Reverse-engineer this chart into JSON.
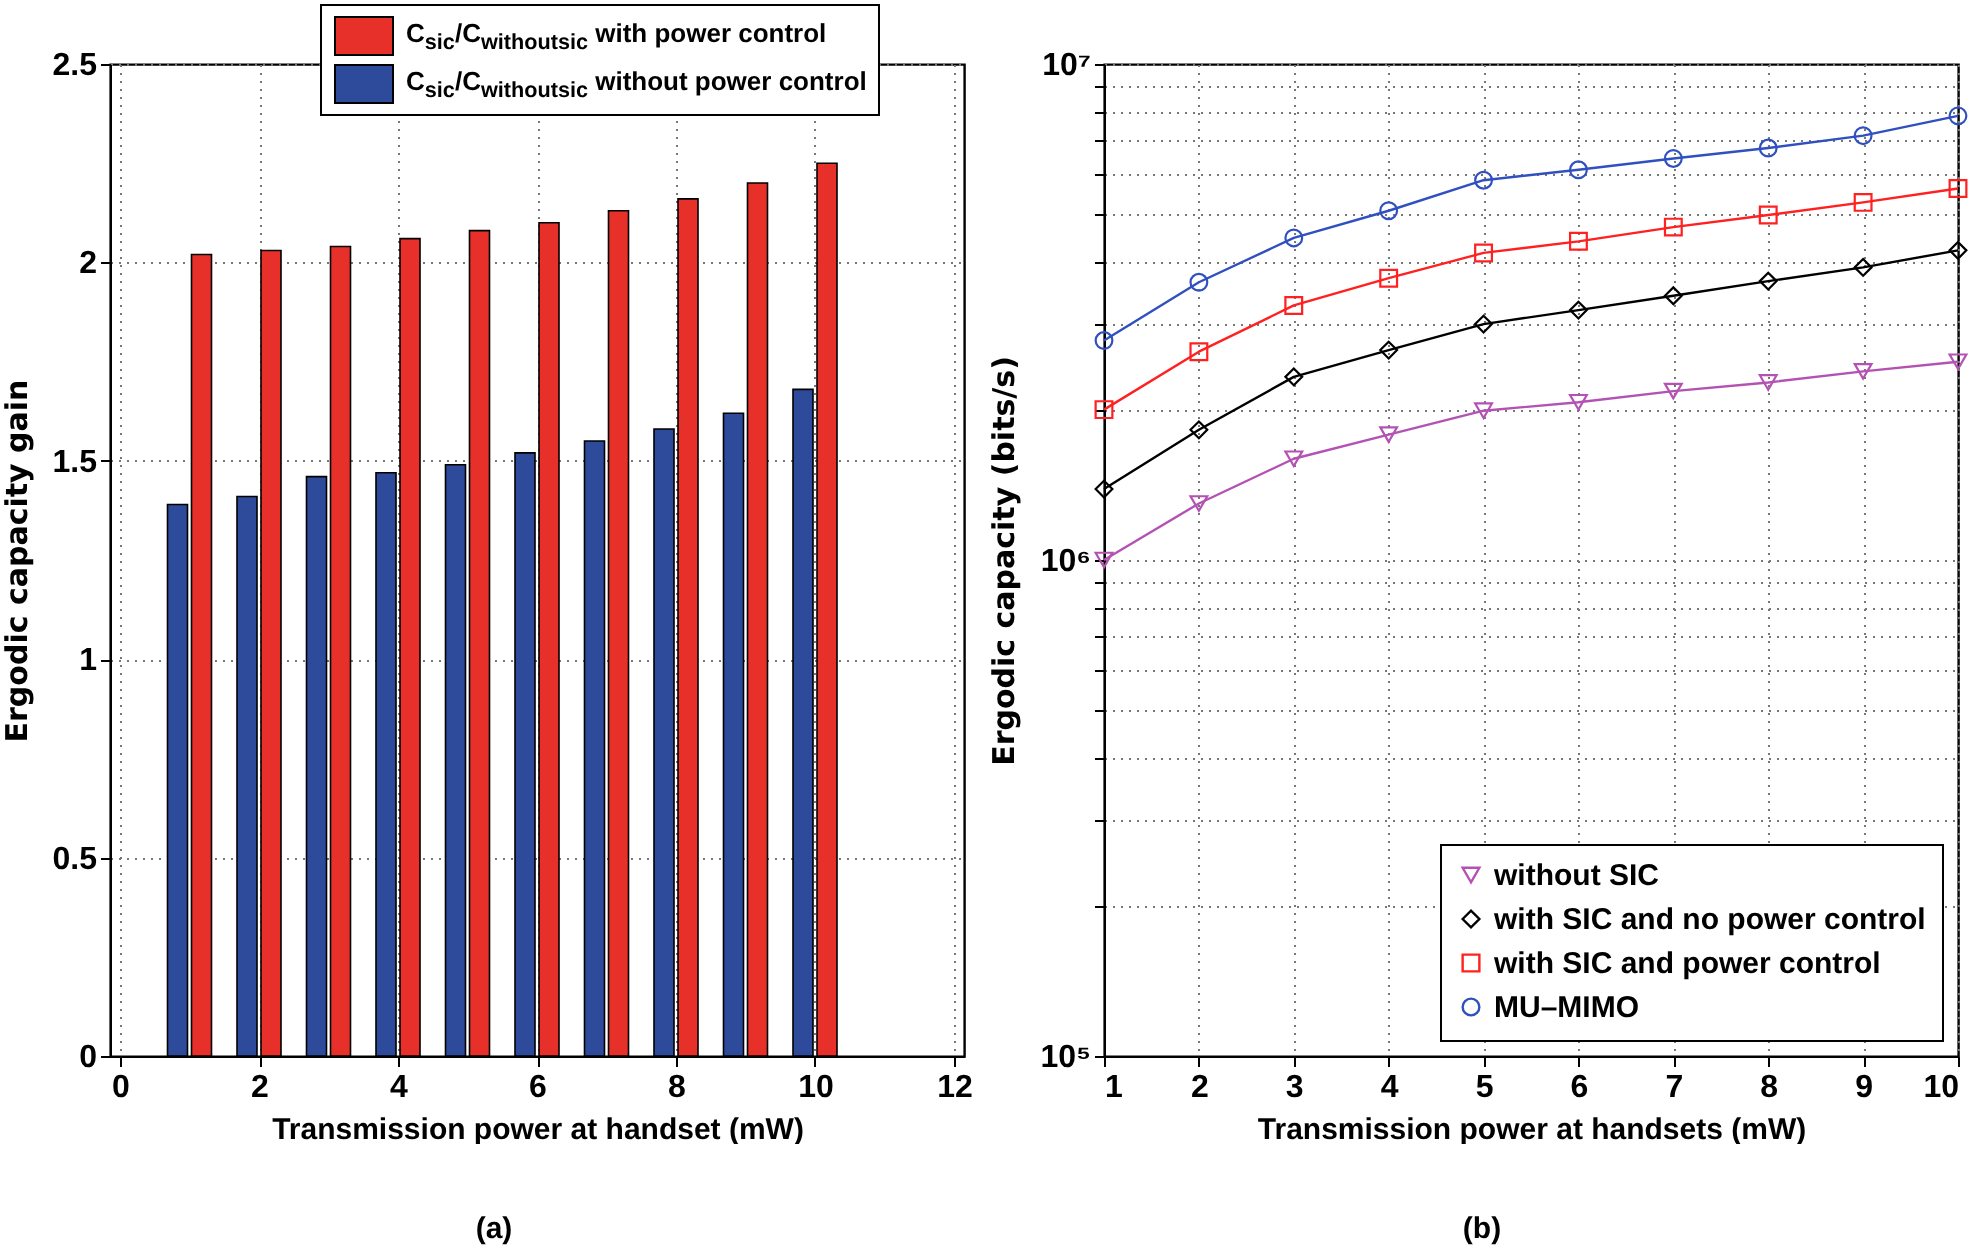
{
  "chart_data": [
    {
      "type": "bar",
      "xlabel": "Transmission power at handset (mW)",
      "ylabel": "Ergodic capacity gain",
      "x": [
        1,
        2,
        3,
        4,
        5,
        6,
        7,
        8,
        9,
        10
      ],
      "series": [
        {
          "name": "C$_{sic}$/C$_{withoutsic}$ with power control",
          "color": "#e8302a",
          "values": [
            2.02,
            2.03,
            2.04,
            2.06,
            2.08,
            2.1,
            2.13,
            2.16,
            2.2,
            2.25
          ]
        },
        {
          "name": "C$_{sic}$/C$_{withoutsic}$ without power control",
          "color": "#2e4a9b",
          "values": [
            1.39,
            1.41,
            1.46,
            1.47,
            1.49,
            1.52,
            1.55,
            1.58,
            1.62,
            1.68
          ]
        }
      ],
      "xlim": [
        0,
        12
      ],
      "xticks": [
        0,
        2,
        4,
        6,
        8,
        10,
        12
      ],
      "ylim": [
        0,
        2.5
      ],
      "yticks": [
        0,
        0.5,
        1,
        1.5,
        2,
        2.5
      ],
      "grid": true,
      "legend": "top",
      "annotations": [
        "(a)"
      ]
    },
    {
      "type": "line",
      "xlabel": "Transmission power at handsets (mW)",
      "ylabel": "Ergodic capacity (bits/s)",
      "x": [
        1,
        2,
        3,
        4,
        5,
        6,
        7,
        8,
        9,
        10
      ],
      "series": [
        {
          "name": "without SIC",
          "color": "#b452b4",
          "marker": "triangle",
          "values": [
            1000000,
            1300000,
            1600000,
            1790000,
            2000000,
            2080000,
            2190000,
            2280000,
            2400000,
            2510000
          ]
        },
        {
          "name": "with SIC and no power control",
          "color": "#000000",
          "marker": "diamond",
          "values": [
            1390000,
            1830000,
            2340000,
            2650000,
            2990000,
            3190000,
            3410000,
            3650000,
            3890000,
            4210000
          ]
        },
        {
          "name": "with SIC and power control",
          "color": "#ff2020",
          "marker": "square",
          "values": [
            2010000,
            2630000,
            3260000,
            3700000,
            4160000,
            4390000,
            4690000,
            4960000,
            5260000,
            5610000
          ]
        },
        {
          "name": "MU–MIMO",
          "color": "#3050c0",
          "marker": "circle",
          "values": [
            2770000,
            3630000,
            4460000,
            5060000,
            5830000,
            6120000,
            6450000,
            6770000,
            7170000,
            7860000
          ]
        }
      ],
      "log": "y",
      "xlim": [
        1,
        10
      ],
      "xticks": [
        1,
        2,
        3,
        4,
        5,
        6,
        7,
        8,
        9,
        10
      ],
      "ylim": [
        100000,
        10000000
      ],
      "yticks": [
        {
          "value": 100000,
          "label": "10⁵"
        },
        {
          "value": 200000,
          "label": null
        },
        {
          "value": 300000,
          "label": null
        },
        {
          "value": 400000,
          "label": null
        },
        {
          "value": 500000,
          "label": null
        },
        {
          "value": 600000,
          "label": null
        },
        {
          "value": 700000,
          "label": null
        },
        {
          "value": 800000,
          "label": null
        },
        {
          "value": 900000,
          "label": null
        },
        {
          "value": 1000000,
          "label": "10⁶"
        },
        {
          "value": 2000000,
          "label": null
        },
        {
          "value": 3000000,
          "label": null
        },
        {
          "value": 4000000,
          "label": null
        },
        {
          "value": 5000000,
          "label": null
        },
        {
          "value": 6000000,
          "label": null
        },
        {
          "value": 7000000,
          "label": null
        },
        {
          "value": 8000000,
          "label": null
        },
        {
          "value": 9000000,
          "label": null
        },
        {
          "value": 10000000,
          "label": "10⁷"
        }
      ],
      "grid": true,
      "legend": "bottom right",
      "line_style": "solid",
      "annotations": [
        "(b)"
      ]
    }
  ]
}
